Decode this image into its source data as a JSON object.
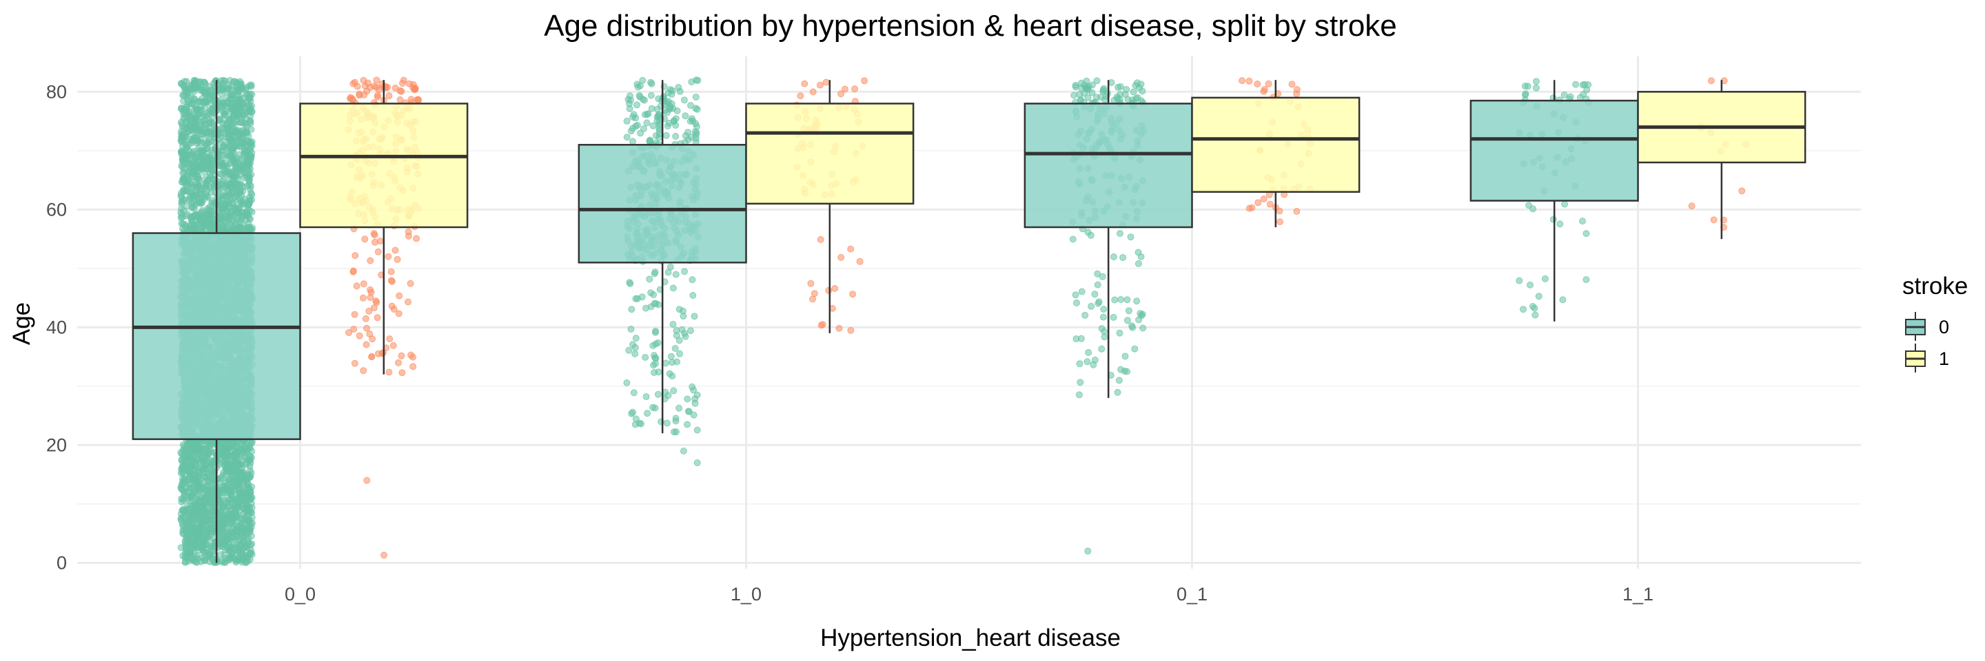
{
  "chart_data": {
    "type": "box",
    "title": "Age distribution by hypertension & heart disease, split by stroke",
    "xlabel": "Hypertension_heart disease",
    "ylabel": "Age",
    "categories": [
      "0_0",
      "1_0",
      "0_1",
      "1_1"
    ],
    "yticks": [
      0,
      20,
      40,
      60,
      80
    ],
    "ylim": [
      -1,
      86
    ],
    "grid": true,
    "legend": {
      "title": "stroke",
      "position": "right",
      "entries": [
        "0",
        "1"
      ]
    },
    "colors": {
      "box_0": "#8dd3c7",
      "box_1": "#ffffb3",
      "points_0": "#66c2a5",
      "points_1": "#fc8d62",
      "grid_major": "#ebebeb",
      "grid_minor": "#f4f4f4"
    },
    "series": [
      {
        "name": "0",
        "boxes": [
          {
            "category": "0_0",
            "min": 0,
            "q1": 21,
            "median": 40,
            "q3": 56,
            "max": 82,
            "outliers": []
          },
          {
            "category": "1_0",
            "min": 22,
            "q1": 51,
            "median": 60,
            "q3": 71,
            "max": 82,
            "outliers": [
              17,
              19
            ]
          },
          {
            "category": "0_1",
            "min": 28,
            "q1": 57,
            "median": 69.5,
            "q3": 78,
            "max": 82,
            "outliers": [
              2
            ]
          },
          {
            "category": "1_1",
            "min": 41,
            "q1": 61.5,
            "median": 72,
            "q3": 78.5,
            "max": 82,
            "outliers": []
          }
        ]
      },
      {
        "name": "1",
        "boxes": [
          {
            "category": "0_0",
            "min": 32,
            "q1": 57,
            "median": 69,
            "q3": 78,
            "max": 82,
            "outliers": [
              1.3,
              14
            ]
          },
          {
            "category": "1_0",
            "min": 39,
            "q1": 61,
            "median": 73,
            "q3": 78,
            "max": 82,
            "outliers": []
          },
          {
            "category": "0_1",
            "min": 57,
            "q1": 63,
            "median": 72,
            "q3": 79,
            "max": 82,
            "outliers": []
          },
          {
            "category": "1_1",
            "min": 55,
            "q1": 68,
            "median": 74,
            "q3": 80,
            "max": 82,
            "outliers": []
          }
        ]
      }
    ],
    "jitter": {
      "counts": [
        [
          4800,
          240
        ],
        [
          430,
          66
        ],
        [
          210,
          45
        ],
        [
          60,
          13
        ]
      ]
    }
  }
}
